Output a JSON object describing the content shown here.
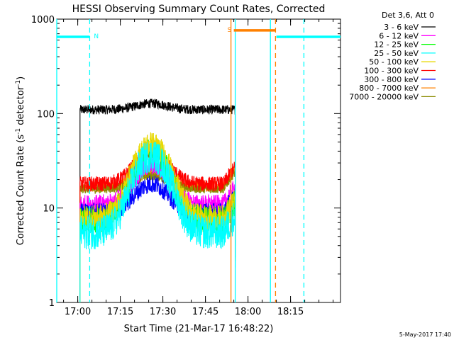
{
  "chart_data": {
    "type": "line",
    "title": "HESSI Observing Summary Count Rates, Corrected",
    "ylabel_main": "Corrected Count Rate (s",
    "ylabel_sup1": "-1",
    "ylabel_mid": " detector",
    "ylabel_sup2": "-1",
    "ylabel_end": ")",
    "xlabel": "Start Time (21-Mar-17 16:48:22)",
    "footer": "5-May-2017 17:40",
    "y_scale": "log",
    "ylim": [
      1,
      1000
    ],
    "xlim_minutes_after_start": [
      -7.4,
      92.6
    ],
    "y_ticks": [
      {
        "value": 1,
        "label": "1"
      },
      {
        "value": 10,
        "label": "10"
      },
      {
        "value": 100,
        "label": "100"
      },
      {
        "value": 1000,
        "label": "1000"
      }
    ],
    "x_ticks": [
      {
        "minutes": 0,
        "label": "17:00"
      },
      {
        "minutes": 15,
        "label": "17:15"
      },
      {
        "minutes": 30,
        "label": "17:30"
      },
      {
        "minutes": 45,
        "label": "17:45"
      },
      {
        "minutes": 60,
        "label": "18:00"
      },
      {
        "minutes": 75,
        "label": "18:15"
      }
    ],
    "legend_title": "Det 3,6, Att 0",
    "series": [
      {
        "name": "3 - 6 keV",
        "color": "#000000",
        "base": 110,
        "peak": 128,
        "noise": 0.05
      },
      {
        "name": "6 - 12 keV",
        "color": "#ff00ff",
        "base": 11,
        "peak": 28,
        "noise": 0.1
      },
      {
        "name": "12 - 25 keV",
        "color": "#00ff00",
        "base": 7.5,
        "peak": 40,
        "noise": 0.14
      },
      {
        "name": "25 - 50 keV",
        "color": "#00ffff",
        "base": 5.5,
        "peak": 36,
        "noise": 0.18
      },
      {
        "name": "50 - 100 keV",
        "color": "#e8d800",
        "base": 8,
        "peak": 48,
        "noise": 0.13
      },
      {
        "name": "100 - 300 keV",
        "color": "#ff0000",
        "base": 18,
        "peak": 38,
        "noise": 0.08
      },
      {
        "name": "300 - 800 keV",
        "color": "#0000ff",
        "base": 9,
        "peak": 18,
        "noise": 0.1
      },
      {
        "name": "800 - 7000 keV",
        "color": "#ff8000",
        "base": 17,
        "peak": 24,
        "noise": 0.06
      },
      {
        "name": "7000 - 20000 keV",
        "color": "#8b8b00",
        "base": 16,
        "peak": 22,
        "noise": 0.05
      }
    ],
    "flare_peak_minutes": 26,
    "data_start_minutes": 0.8,
    "data_end_minutes": 55.5,
    "flags": [
      {
        "label": "N",
        "color": "#00ffff",
        "value": 650,
        "segments": [
          [
            -7.4,
            4.2
          ],
          [
            70,
            92.6
          ]
        ]
      },
      {
        "label": "S",
        "color": "#ff8000",
        "value": 760,
        "segments": [
          [
            55,
            69.7
          ]
        ]
      }
    ],
    "vlines": [
      {
        "minutes": -7.4,
        "color": "#00ffff",
        "style": "solid"
      },
      {
        "minutes": 4.2,
        "color": "#00ffff",
        "style": "dashed"
      },
      {
        "minutes": 54.0,
        "color": "#ff8000",
        "style": "solid"
      },
      {
        "minutes": 55.5,
        "color": "#00ffff",
        "style": "solid"
      },
      {
        "minutes": 67.9,
        "color": "#00ffff",
        "style": "solid"
      },
      {
        "minutes": 69.7,
        "color": "#ff8000",
        "style": "dashed"
      },
      {
        "minutes": 79.7,
        "color": "#00ffff",
        "style": "dashed"
      }
    ]
  }
}
